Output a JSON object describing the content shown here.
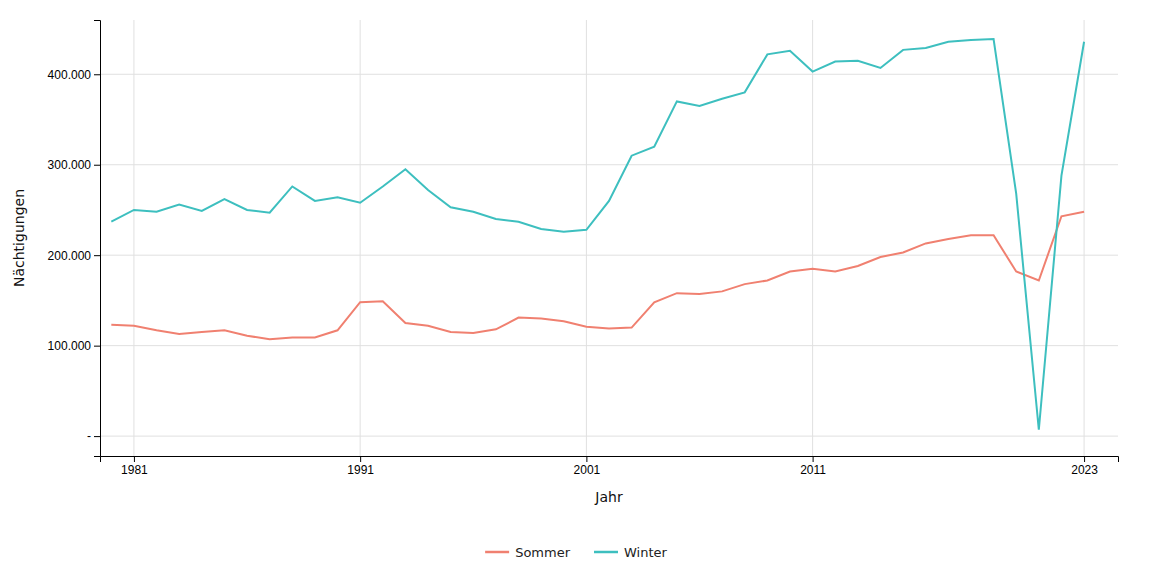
{
  "chart_data": {
    "type": "line",
    "xlabel": "Jahr",
    "ylabel": "Nächtigungen",
    "x": [
      1980,
      1981,
      1982,
      1983,
      1984,
      1985,
      1986,
      1987,
      1988,
      1989,
      1990,
      1991,
      1992,
      1993,
      1994,
      1995,
      1996,
      1997,
      1998,
      1999,
      2000,
      2001,
      2002,
      2003,
      2004,
      2005,
      2006,
      2007,
      2008,
      2009,
      2010,
      2011,
      2012,
      2013,
      2014,
      2015,
      2016,
      2017,
      2018,
      2019,
      2020,
      2021,
      2022,
      2023
    ],
    "series": [
      {
        "name": "Sommer",
        "color": "#F08070",
        "values": [
          123000,
          122000,
          117000,
          113000,
          115000,
          117000,
          111000,
          107000,
          109000,
          109000,
          117000,
          148000,
          149000,
          125000,
          122000,
          115000,
          114000,
          118000,
          131000,
          130000,
          127000,
          121000,
          119000,
          120000,
          148000,
          158000,
          157000,
          160000,
          168000,
          172000,
          182000,
          185000,
          182000,
          188000,
          198000,
          203000,
          213000,
          218000,
          222000,
          222000,
          182000,
          172000,
          243000,
          248000
        ]
      },
      {
        "name": "Winter",
        "color": "#3DBFBF",
        "values": [
          237000,
          250000,
          248000,
          256000,
          249000,
          262000,
          250000,
          247000,
          276000,
          260000,
          264000,
          258000,
          276000,
          295000,
          272000,
          253000,
          248000,
          240000,
          237000,
          229000,
          226000,
          228000,
          260000,
          310000,
          320000,
          370000,
          365000,
          373000,
          380000,
          422000,
          426000,
          403000,
          414000,
          415000,
          407000,
          427000,
          429000,
          436000,
          438000,
          439000,
          268000,
          7000,
          288000,
          436000
        ]
      }
    ],
    "xlim": [
      1979.5,
      2024.5
    ],
    "ylim": [
      -22000,
      460000
    ],
    "xticks": [
      1981,
      1991,
      2001,
      2011,
      2023
    ],
    "yticks": [
      {
        "value": 0,
        "label": "-"
      },
      {
        "value": 100000,
        "label": "100.000"
      },
      {
        "value": 200000,
        "label": "200.000"
      },
      {
        "value": 300000,
        "label": "300.000"
      },
      {
        "value": 400000,
        "label": "400.000"
      }
    ],
    "grid": true,
    "legend": "bottom"
  }
}
